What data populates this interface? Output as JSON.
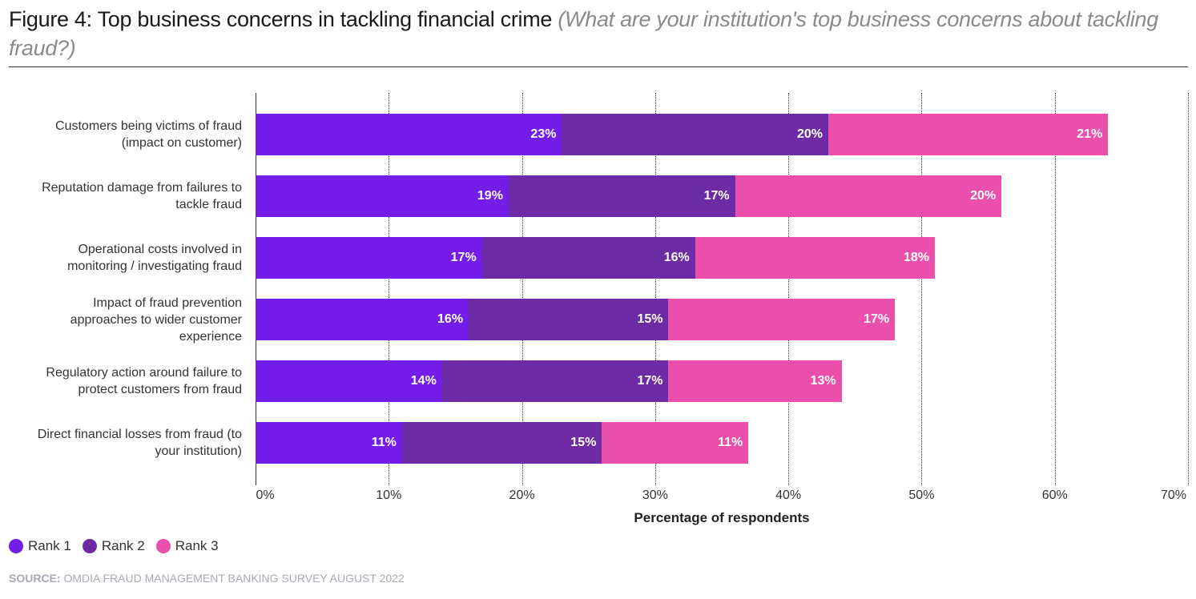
{
  "header": {
    "title": "Figure 4: Top business concerns in tackling financial crime ",
    "subtitle": "(What are your institution's top business concerns about tackling fraud?)"
  },
  "legend": [
    {
      "label": "Rank 1",
      "color": "#741de8"
    },
    {
      "label": "Rank 2",
      "color": "#6d2ba6"
    },
    {
      "label": "Rank 3",
      "color": "#eb4fac"
    }
  ],
  "source": {
    "prefix": "SOURCE:",
    "text": " OMDIA FRAUD MANAGEMENT BANKING SURVEY AUGUST 2022"
  },
  "chart_data": {
    "type": "bar",
    "orientation": "horizontal",
    "stacked": true,
    "title": "Figure 4: Top business concerns in tackling financial crime",
    "subtitle": "(What are your institution's top business concerns about tackling fraud?)",
    "xlabel": "Percentage of respondents",
    "ylabel": "",
    "xlim": [
      0,
      70
    ],
    "x_ticks": [
      "0%",
      "10%",
      "20%",
      "30%",
      "40%",
      "50%",
      "60%",
      "70%"
    ],
    "grid": "vertical dotted",
    "legend_position": "bottom-left",
    "categories": [
      "Customers being victims of fraud (impact on customer)",
      "Reputation damage from failures to tackle fraud",
      "Operational costs involved in monitoring / investigating fraud",
      "Impact of fraud prevention approaches to wider customer experience",
      "Regulatory action around failure to protect customers from fraud",
      "Direct financial losses from fraud (to your institution)"
    ],
    "series": [
      {
        "name": "Rank 1",
        "color": "#741de8",
        "values": [
          23,
          19,
          17,
          16,
          14,
          11
        ]
      },
      {
        "name": "Rank 2",
        "color": "#6d2ba6",
        "values": [
          20,
          17,
          16,
          15,
          17,
          15
        ]
      },
      {
        "name": "Rank 3",
        "color": "#eb4fac",
        "values": [
          21,
          20,
          18,
          17,
          13,
          11
        ]
      }
    ]
  },
  "rows": [
    {
      "label_lines": [
        "Customers being victims of fraud",
        "(impact on customer)"
      ],
      "v": [
        "23%",
        "20%",
        "21%"
      ]
    },
    {
      "label_lines": [
        "Reputation damage from failures to",
        "tackle fraud"
      ],
      "v": [
        "19%",
        "17%",
        "20%"
      ]
    },
    {
      "label_lines": [
        "Operational costs involved in",
        "monitoring / investigating fraud"
      ],
      "v": [
        "17%",
        "16%",
        "18%"
      ]
    },
    {
      "label_lines": [
        "Impact of fraud prevention",
        "approaches to wider customer",
        "experience"
      ],
      "v": [
        "16%",
        "15%",
        "17%"
      ]
    },
    {
      "label_lines": [
        "Regulatory action around failure to",
        "protect customers from fraud"
      ],
      "v": [
        "14%",
        "17%",
        "13%"
      ]
    },
    {
      "label_lines": [
        "Direct financial losses from fraud (to",
        "your institution)"
      ],
      "v": [
        "11%",
        "15%",
        "11%"
      ]
    }
  ]
}
